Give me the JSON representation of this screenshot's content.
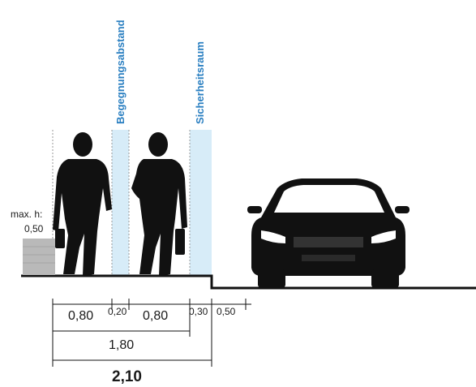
{
  "zones": {
    "encounter_label": "Begegnungsabstand",
    "safety_label": "Sicherheitsraum",
    "zone_color": "#d7ecf8",
    "label_color": "#2a7fc1"
  },
  "obstacle": {
    "label": "max. h:",
    "height_value": "0,50"
  },
  "dimensions": {
    "segments": [
      "0,80",
      "0,20",
      "0,80",
      "0,30",
      "0,50"
    ],
    "subtotal": "1,80",
    "total": "2,10"
  }
}
